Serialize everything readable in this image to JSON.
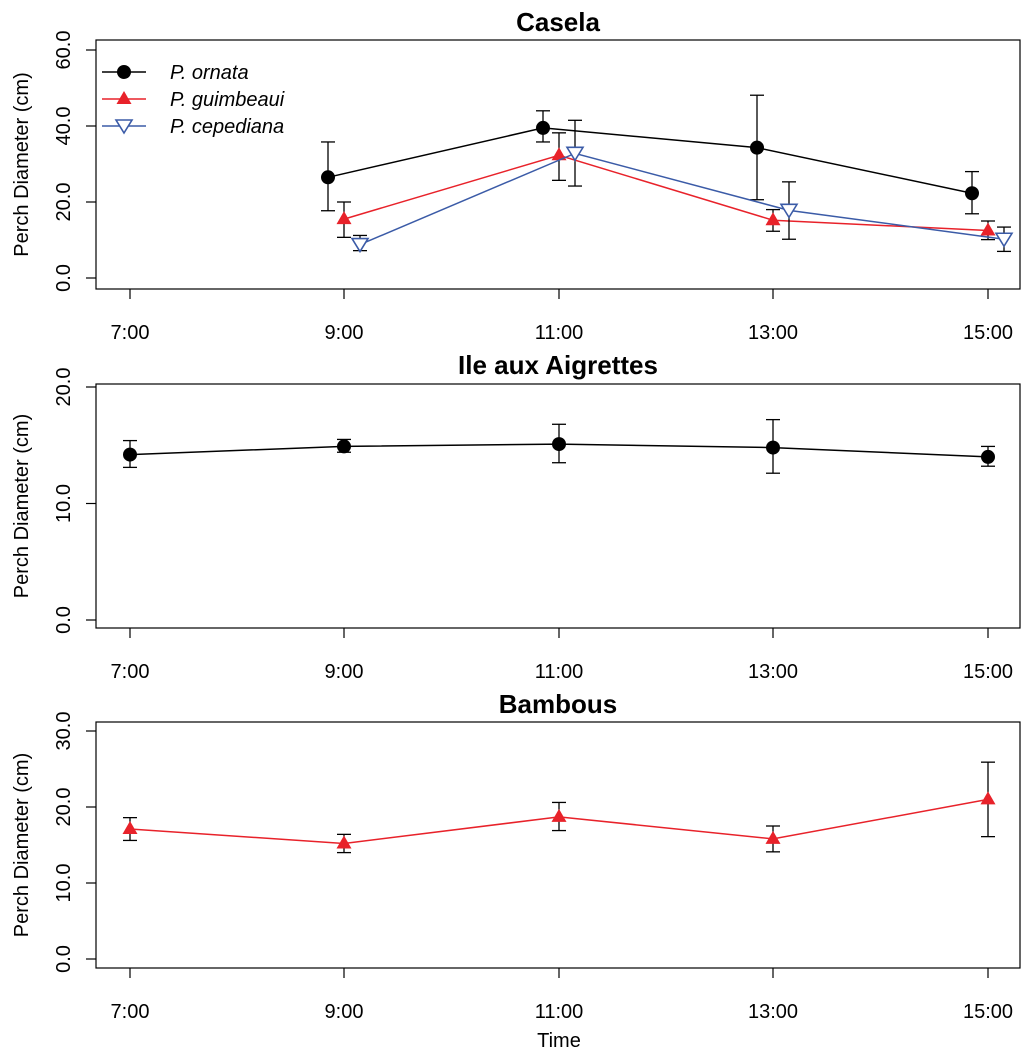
{
  "chart_data": [
    {
      "type": "line",
      "title": "Casela",
      "xlabel": "",
      "ylabel": "Perch Diameter (cm)",
      "x": [
        "7:00",
        "9:00",
        "11:00",
        "13:00",
        "15:00"
      ],
      "ylim": [
        0,
        60
      ],
      "yticks": [
        "0.0",
        "20.0",
        "40.0",
        "60.0"
      ],
      "legend": "top-left",
      "series": [
        {
          "name": "P. ornata",
          "color": "#000000",
          "marker": "circle",
          "x": [
            "9:00",
            "11:00",
            "13:00",
            "15:00"
          ],
          "values": [
            26.5,
            39.5,
            34.3,
            22.3
          ],
          "err_low": [
            17.7,
            35.8,
            20.6,
            16.9
          ],
          "err_high": [
            35.8,
            44.0,
            48.1,
            28.0
          ]
        },
        {
          "name": "P. guimbeaui",
          "color": "#e8222a",
          "marker": "triangle",
          "x": [
            "9:00",
            "11:00",
            "13:00",
            "15:00"
          ],
          "values": [
            15.5,
            32.3,
            15.2,
            12.5
          ],
          "err_low": [
            10.7,
            25.7,
            12.3,
            10.1
          ],
          "err_high": [
            20.0,
            38.2,
            18.0,
            15.0
          ]
        },
        {
          "name": "P. cepediana",
          "color": "#3b5ba7",
          "marker": "triangle-down",
          "x": [
            "9:00",
            "11:00",
            "13:00",
            "15:00"
          ],
          "values": [
            8.8,
            32.8,
            17.8,
            10.2
          ],
          "err_low": [
            7.2,
            24.2,
            10.2,
            7.0
          ],
          "err_high": [
            11.2,
            41.5,
            25.3,
            13.4
          ]
        }
      ]
    },
    {
      "type": "line",
      "title": "Ile aux Aigrettes",
      "xlabel": "",
      "ylabel": "Perch Diameter (cm)",
      "x": [
        "7:00",
        "9:00",
        "11:00",
        "13:00",
        "15:00"
      ],
      "ylim": [
        0,
        20
      ],
      "yticks": [
        "0.0",
        "10.0",
        "20.0"
      ],
      "series": [
        {
          "color": "#000000",
          "marker": "circle",
          "x": [
            "7:00",
            "9:00",
            "11:00",
            "13:00",
            "15:00"
          ],
          "values": [
            14.2,
            14.9,
            15.1,
            14.8,
            14.0
          ],
          "err_low": [
            13.1,
            14.4,
            13.5,
            12.6,
            13.2
          ],
          "err_high": [
            15.4,
            15.5,
            16.8,
            17.2,
            14.9
          ]
        }
      ]
    },
    {
      "type": "line",
      "title": "Bambous",
      "xlabel": "Time",
      "ylabel": "Perch Diameter (cm)",
      "x": [
        "7:00",
        "9:00",
        "11:00",
        "13:00",
        "15:00"
      ],
      "ylim": [
        0,
        30
      ],
      "yticks": [
        "0.0",
        "10.0",
        "20.0",
        "30.0"
      ],
      "series": [
        {
          "color": "#e8222a",
          "marker": "triangle",
          "x": [
            "7:00",
            "9:00",
            "11:00",
            "13:00",
            "15:00"
          ],
          "values": [
            17.1,
            15.2,
            18.7,
            15.8,
            21.0
          ],
          "err_low": [
            15.6,
            14.0,
            16.9,
            14.1,
            16.1
          ],
          "err_high": [
            18.6,
            16.4,
            20.6,
            17.5,
            25.9
          ]
        }
      ]
    }
  ]
}
